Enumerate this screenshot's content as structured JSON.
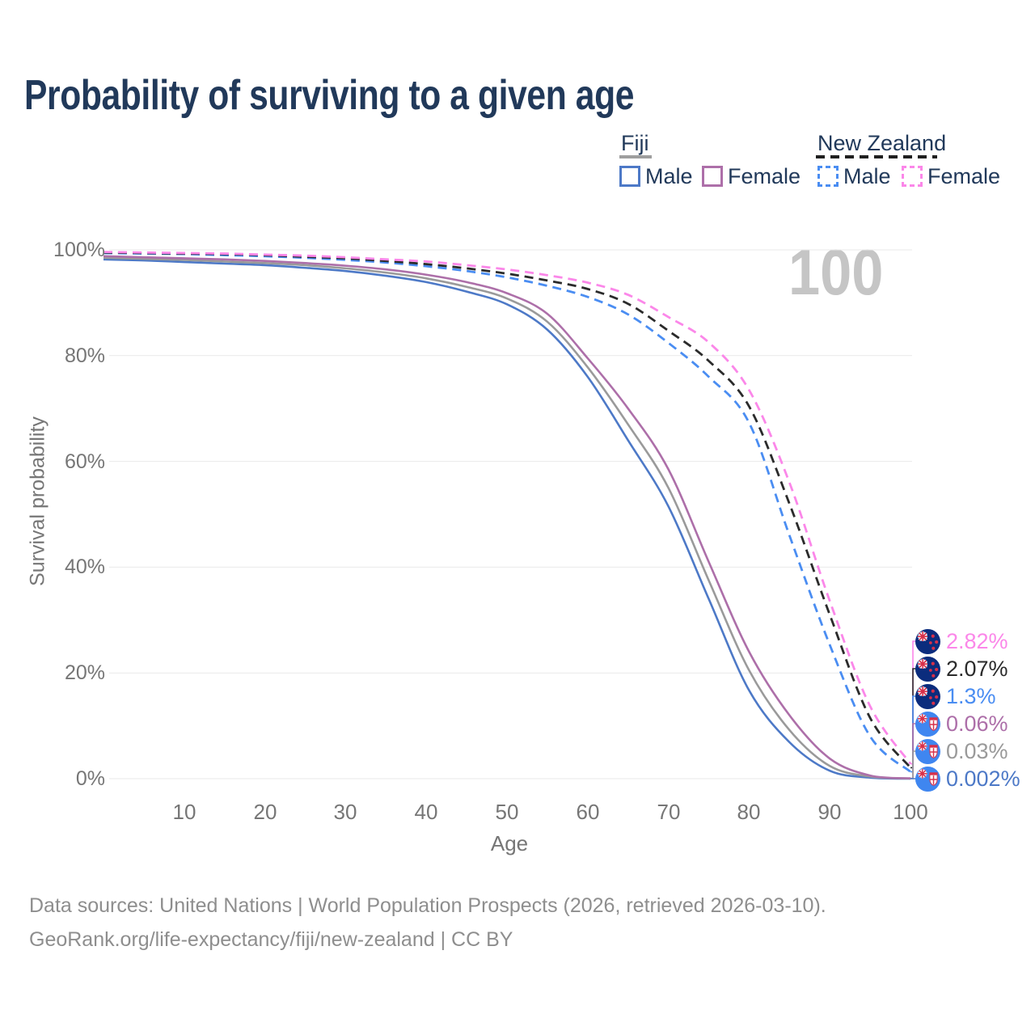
{
  "title": "Probability of surviving to a given age",
  "watermark": "100",
  "legend": {
    "groups": [
      {
        "label": "Fiji",
        "underline_style": "solid",
        "underline_color": "#9e9e9e",
        "items": [
          {
            "label": "Male",
            "color": "#4d79c7",
            "dash": false
          },
          {
            "label": "Female",
            "color": "#ad6fa9",
            "dash": false
          }
        ]
      },
      {
        "label": "New Zealand",
        "underline_style": "dashed",
        "underline_color": "#1f1f1f",
        "items": [
          {
            "label": "Male",
            "color": "#4a8df2",
            "dash": true
          },
          {
            "label": "Female",
            "color": "#fb87e9",
            "dash": true
          }
        ]
      }
    ]
  },
  "axes": {
    "y": {
      "title": "Survival probability",
      "ticks": [
        "0%",
        "20%",
        "40%",
        "60%",
        "80%",
        "100%"
      ]
    },
    "x": {
      "title": "Age",
      "ticks": [
        "10",
        "20",
        "30",
        "40",
        "50",
        "60",
        "70",
        "80",
        "90",
        "100"
      ]
    }
  },
  "end_labels": [
    {
      "value": "2.82%",
      "color": "#fb87e9",
      "flag": "new-zealand",
      "pct": 2.82
    },
    {
      "value": "2.07%",
      "color": "#2b2b2b",
      "flag": "new-zealand",
      "pct": 2.07
    },
    {
      "value": "1.3%",
      "color": "#4a8df2",
      "flag": "new-zealand",
      "pct": 1.3
    },
    {
      "value": "0.06%",
      "color": "#ad6fa9",
      "flag": "fiji",
      "pct": 0.06
    },
    {
      "value": "0.03%",
      "color": "#9a9a9a",
      "flag": "fiji",
      "pct": 0.03
    },
    {
      "value": "0.002%",
      "color": "#4d79c7",
      "flag": "fiji",
      "pct": 0.002
    }
  ],
  "footer": {
    "line1": "Data sources: United Nations | World Population Prospects (2026, retrieved 2026-03-10).",
    "line2": "GeoRank.org/life-expectancy/fiji/new-zealand | CC BY"
  },
  "chart_data": {
    "type": "line",
    "title": "Probability of surviving to a given age",
    "xlabel": "Age",
    "ylabel": "Survival probability",
    "xlim": [
      0,
      100
    ],
    "ylim": [
      0,
      100
    ],
    "y_unit": "%",
    "grid": "horizontal",
    "legend_position": "top-right",
    "x": [
      0,
      5,
      10,
      15,
      20,
      25,
      30,
      35,
      40,
      45,
      50,
      55,
      60,
      65,
      70,
      75,
      80,
      85,
      90,
      95,
      100
    ],
    "series": [
      {
        "name": "New Zealand Female",
        "color": "#fb87e9",
        "dash": true,
        "values": [
          99.6,
          99.5,
          99.4,
          99.3,
          99.1,
          98.9,
          98.6,
          98.2,
          97.8,
          97.1,
          96.3,
          95.2,
          93.8,
          91.5,
          87.3,
          82.5,
          73.5,
          56.0,
          33.6,
          13.7,
          2.82
        ]
      },
      {
        "name": "New Zealand (both sexes)",
        "color": "#2b2b2b",
        "dash": true,
        "values": [
          99.5,
          99.4,
          99.3,
          99.2,
          99.0,
          98.7,
          98.4,
          97.9,
          97.3,
          96.5,
          95.5,
          94.2,
          92.6,
          89.8,
          84.7,
          79.0,
          70.4,
          52.0,
          31.0,
          11.5,
          2.07
        ]
      },
      {
        "name": "New Zealand Male",
        "color": "#4a8df2",
        "dash": true,
        "values": [
          99.4,
          99.3,
          99.2,
          99.0,
          98.8,
          98.5,
          98.1,
          97.6,
          96.9,
          96.0,
          94.8,
          93.2,
          91.1,
          87.8,
          82.4,
          76.0,
          67.3,
          46.0,
          25.3,
          8.0,
          1.3
        ]
      },
      {
        "name": "Fiji Female",
        "color": "#ad6fa9",
        "dash": false,
        "values": [
          98.8,
          98.6,
          98.4,
          98.2,
          97.9,
          97.5,
          97.0,
          96.3,
          95.3,
          93.9,
          91.8,
          87.9,
          79.5,
          70.0,
          58.5,
          41.0,
          24.0,
          12.0,
          3.8,
          0.6,
          0.06
        ]
      },
      {
        "name": "Fiji (both sexes)",
        "color": "#9a9a9a",
        "dash": false,
        "values": [
          98.5,
          98.3,
          98.1,
          97.8,
          97.5,
          97.1,
          96.5,
          95.7,
          94.6,
          93.0,
          90.8,
          86.4,
          77.8,
          67.0,
          55.0,
          37.5,
          20.5,
          9.2,
          2.4,
          0.4,
          0.03
        ]
      },
      {
        "name": "Fiji Male",
        "color": "#4d79c7",
        "dash": false,
        "values": [
          98.2,
          98.0,
          97.7,
          97.4,
          97.1,
          96.6,
          96.0,
          95.1,
          93.9,
          92.1,
          89.7,
          84.9,
          76.0,
          64.0,
          51.5,
          34.0,
          16.7,
          6.9,
          1.5,
          0.2,
          0.002
        ]
      }
    ]
  }
}
